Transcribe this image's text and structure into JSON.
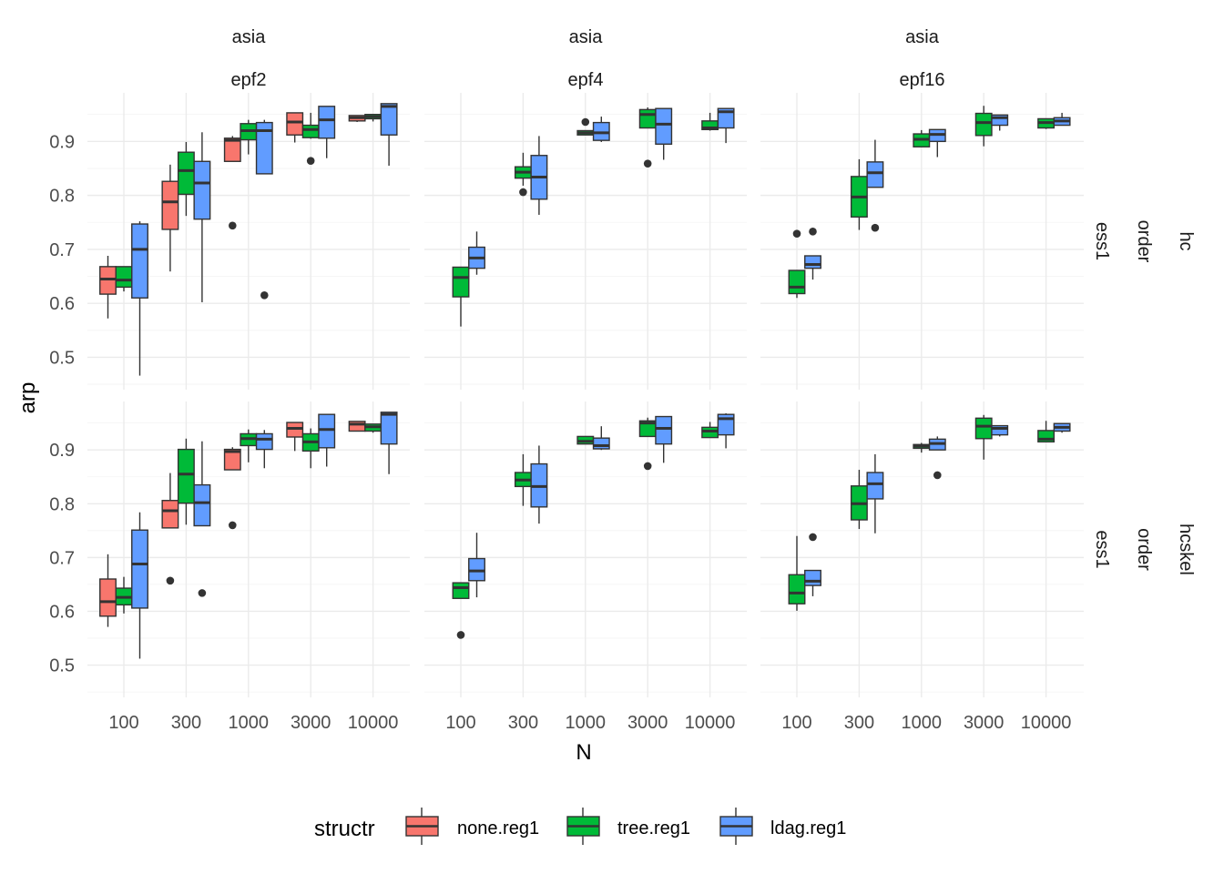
{
  "chart_data": {
    "type": "boxplot",
    "xlabel": "N",
    "ylabel": "arp",
    "x_categories": [
      "100",
      "300",
      "1000",
      "3000",
      "10000"
    ],
    "y_ticks": [
      0.5,
      0.6,
      0.7,
      0.8,
      0.9
    ],
    "ylim": [
      0.44,
      0.99
    ],
    "grid": true,
    "legend": {
      "title": "structr",
      "position": "bottom",
      "entries": [
        {
          "name": "none.reg1",
          "color": "#F8766D"
        },
        {
          "name": "tree.reg1",
          "color": "#00BA38"
        },
        {
          "name": "ldag.reg1",
          "color": "#619CFF"
        }
      ]
    },
    "column_strips": [
      {
        "line1": "asia",
        "line2": "epf2"
      },
      {
        "line1": "asia",
        "line2": "epf4"
      },
      {
        "line1": "asia",
        "line2": "epf16"
      }
    ],
    "row_strips": [
      {
        "line1": "hc",
        "line2": "order",
        "line3": "ess1"
      },
      {
        "line1": "hcskel",
        "line2": "order",
        "line3": "ess1"
      }
    ],
    "panels": [
      {
        "row": 0,
        "col": 0,
        "boxes": [
          {
            "series": "none.reg1",
            "x": "100",
            "wl": 0.572,
            "q1": 0.617,
            "med": 0.645,
            "q3": 0.668,
            "wh": 0.688,
            "out": []
          },
          {
            "series": "tree.reg1",
            "x": "100",
            "wl": 0.622,
            "q1": 0.63,
            "med": 0.643,
            "q3": 0.668,
            "wh": 0.668,
            "out": []
          },
          {
            "series": "ldag.reg1",
            "x": "100",
            "wl": 0.466,
            "q1": 0.61,
            "med": 0.7,
            "q3": 0.747,
            "wh": 0.752,
            "out": []
          },
          {
            "series": "none.reg1",
            "x": "300",
            "wl": 0.659,
            "q1": 0.737,
            "med": 0.788,
            "q3": 0.826,
            "wh": 0.857,
            "out": []
          },
          {
            "series": "tree.reg1",
            "x": "300",
            "wl": 0.762,
            "q1": 0.802,
            "med": 0.846,
            "q3": 0.88,
            "wh": 0.899,
            "out": []
          },
          {
            "series": "ldag.reg1",
            "x": "300",
            "wl": 0.602,
            "q1": 0.756,
            "med": 0.823,
            "q3": 0.863,
            "wh": 0.917,
            "out": []
          },
          {
            "series": "none.reg1",
            "x": "1000",
            "wl": 0.863,
            "q1": 0.863,
            "med": 0.902,
            "q3": 0.906,
            "wh": 0.91,
            "out": [
              0.744
            ]
          },
          {
            "series": "tree.reg1",
            "x": "1000",
            "wl": 0.876,
            "q1": 0.903,
            "med": 0.92,
            "q3": 0.933,
            "wh": 0.94,
            "out": []
          },
          {
            "series": "ldag.reg1",
            "x": "1000",
            "wl": 0.84,
            "q1": 0.84,
            "med": 0.92,
            "q3": 0.935,
            "wh": 0.94,
            "out": [
              0.615
            ]
          },
          {
            "series": "none.reg1",
            "x": "3000",
            "wl": 0.898,
            "q1": 0.912,
            "med": 0.936,
            "q3": 0.953,
            "wh": 0.953,
            "out": []
          },
          {
            "series": "tree.reg1",
            "x": "3000",
            "wl": 0.905,
            "q1": 0.907,
            "med": 0.922,
            "q3": 0.93,
            "wh": 0.953,
            "out": [
              0.864
            ]
          },
          {
            "series": "ldag.reg1",
            "x": "3000",
            "wl": 0.869,
            "q1": 0.906,
            "med": 0.94,
            "q3": 0.965,
            "wh": 0.965,
            "out": []
          },
          {
            "series": "none.reg1",
            "x": "10000",
            "wl": 0.936,
            "q1": 0.938,
            "med": 0.944,
            "q3": 0.948,
            "wh": 0.948,
            "out": []
          },
          {
            "series": "tree.reg1",
            "x": "10000",
            "wl": 0.937,
            "q1": 0.942,
            "med": 0.946,
            "q3": 0.95,
            "wh": 0.95,
            "out": []
          },
          {
            "series": "ldag.reg1",
            "x": "10000",
            "wl": 0.855,
            "q1": 0.912,
            "med": 0.965,
            "q3": 0.97,
            "wh": 0.97,
            "out": []
          }
        ]
      },
      {
        "row": 0,
        "col": 1,
        "boxes": [
          {
            "series": "tree.reg1",
            "x": "100",
            "wl": 0.557,
            "q1": 0.612,
            "med": 0.648,
            "q3": 0.667,
            "wh": 0.667,
            "out": []
          },
          {
            "series": "ldag.reg1",
            "x": "100",
            "wl": 0.653,
            "q1": 0.665,
            "med": 0.684,
            "q3": 0.704,
            "wh": 0.733,
            "out": []
          },
          {
            "series": "tree.reg1",
            "x": "300",
            "wl": 0.818,
            "q1": 0.832,
            "med": 0.843,
            "q3": 0.853,
            "wh": 0.879,
            "out": [
              0.806
            ]
          },
          {
            "series": "ldag.reg1",
            "x": "300",
            "wl": 0.764,
            "q1": 0.793,
            "med": 0.834,
            "q3": 0.874,
            "wh": 0.91,
            "out": []
          },
          {
            "series": "tree.reg1",
            "x": "1000",
            "wl": 0.912,
            "q1": 0.912,
            "med": 0.916,
            "q3": 0.92,
            "wh": 0.92,
            "out": [
              0.936
            ]
          },
          {
            "series": "ldag.reg1",
            "x": "1000",
            "wl": 0.899,
            "q1": 0.902,
            "med": 0.916,
            "q3": 0.935,
            "wh": 0.946,
            "out": []
          },
          {
            "series": "tree.reg1",
            "x": "3000",
            "wl": 0.925,
            "q1": 0.925,
            "med": 0.95,
            "q3": 0.959,
            "wh": 0.963,
            "out": [
              0.859
            ]
          },
          {
            "series": "ldag.reg1",
            "x": "3000",
            "wl": 0.866,
            "q1": 0.895,
            "med": 0.932,
            "q3": 0.961,
            "wh": 0.961,
            "out": []
          },
          {
            "series": "tree.reg1",
            "x": "10000",
            "wl": 0.92,
            "q1": 0.922,
            "med": 0.925,
            "q3": 0.938,
            "wh": 0.953,
            "out": []
          },
          {
            "series": "ldag.reg1",
            "x": "10000",
            "wl": 0.897,
            "q1": 0.925,
            "med": 0.955,
            "q3": 0.961,
            "wh": 0.961,
            "out": []
          }
        ]
      },
      {
        "row": 0,
        "col": 2,
        "boxes": [
          {
            "series": "tree.reg1",
            "x": "100",
            "wl": 0.61,
            "q1": 0.618,
            "med": 0.63,
            "q3": 0.661,
            "wh": 0.661,
            "out": [
              0.729
            ]
          },
          {
            "series": "ldag.reg1",
            "x": "100",
            "wl": 0.644,
            "q1": 0.665,
            "med": 0.672,
            "q3": 0.688,
            "wh": 0.688,
            "out": [
              0.733
            ]
          },
          {
            "series": "tree.reg1",
            "x": "300",
            "wl": 0.736,
            "q1": 0.76,
            "med": 0.797,
            "q3": 0.835,
            "wh": 0.867,
            "out": []
          },
          {
            "series": "ldag.reg1",
            "x": "300",
            "wl": 0.815,
            "q1": 0.815,
            "med": 0.842,
            "q3": 0.862,
            "wh": 0.903,
            "out": [
              0.74
            ]
          },
          {
            "series": "tree.reg1",
            "x": "1000",
            "wl": 0.89,
            "q1": 0.89,
            "med": 0.904,
            "q3": 0.914,
            "wh": 0.921,
            "out": []
          },
          {
            "series": "ldag.reg1",
            "x": "1000",
            "wl": 0.871,
            "q1": 0.9,
            "med": 0.913,
            "q3": 0.922,
            "wh": 0.922,
            "out": []
          },
          {
            "series": "tree.reg1",
            "x": "3000",
            "wl": 0.891,
            "q1": 0.911,
            "med": 0.935,
            "q3": 0.952,
            "wh": 0.966,
            "out": []
          },
          {
            "series": "ldag.reg1",
            "x": "3000",
            "wl": 0.92,
            "q1": 0.93,
            "med": 0.944,
            "q3": 0.949,
            "wh": 0.949,
            "out": []
          },
          {
            "series": "tree.reg1",
            "x": "10000",
            "wl": 0.923,
            "q1": 0.925,
            "med": 0.935,
            "q3": 0.942,
            "wh": 0.942,
            "out": []
          },
          {
            "series": "ldag.reg1",
            "x": "10000",
            "wl": 0.93,
            "q1": 0.93,
            "med": 0.938,
            "q3": 0.944,
            "wh": 0.953,
            "out": []
          }
        ]
      },
      {
        "row": 1,
        "col": 0,
        "boxes": [
          {
            "series": "none.reg1",
            "x": "100",
            "wl": 0.571,
            "q1": 0.591,
            "med": 0.618,
            "q3": 0.66,
            "wh": 0.706,
            "out": []
          },
          {
            "series": "tree.reg1",
            "x": "100",
            "wl": 0.596,
            "q1": 0.612,
            "med": 0.626,
            "q3": 0.643,
            "wh": 0.664,
            "out": []
          },
          {
            "series": "ldag.reg1",
            "x": "100",
            "wl": 0.512,
            "q1": 0.606,
            "med": 0.688,
            "q3": 0.751,
            "wh": 0.784,
            "out": []
          },
          {
            "series": "none.reg1",
            "x": "300",
            "wl": 0.755,
            "q1": 0.755,
            "med": 0.787,
            "q3": 0.806,
            "wh": 0.857,
            "out": [
              0.657
            ]
          },
          {
            "series": "tree.reg1",
            "x": "300",
            "wl": 0.761,
            "q1": 0.801,
            "med": 0.855,
            "q3": 0.901,
            "wh": 0.921,
            "out": []
          },
          {
            "series": "ldag.reg1",
            "x": "300",
            "wl": 0.759,
            "q1": 0.759,
            "med": 0.802,
            "q3": 0.835,
            "wh": 0.916,
            "out": [
              0.634
            ]
          },
          {
            "series": "none.reg1",
            "x": "1000",
            "wl": 0.863,
            "q1": 0.863,
            "med": 0.897,
            "q3": 0.901,
            "wh": 0.905,
            "out": [
              0.76
            ]
          },
          {
            "series": "tree.reg1",
            "x": "1000",
            "wl": 0.877,
            "q1": 0.908,
            "med": 0.921,
            "q3": 0.93,
            "wh": 0.938,
            "out": []
          },
          {
            "series": "ldag.reg1",
            "x": "1000",
            "wl": 0.866,
            "q1": 0.901,
            "med": 0.92,
            "q3": 0.93,
            "wh": 0.937,
            "out": []
          },
          {
            "series": "none.reg1",
            "x": "3000",
            "wl": 0.898,
            "q1": 0.924,
            "med": 0.94,
            "q3": 0.951,
            "wh": 0.951,
            "out": []
          },
          {
            "series": "tree.reg1",
            "x": "3000",
            "wl": 0.866,
            "q1": 0.898,
            "med": 0.915,
            "q3": 0.93,
            "wh": 0.94,
            "out": []
          },
          {
            "series": "ldag.reg1",
            "x": "3000",
            "wl": 0.869,
            "q1": 0.904,
            "med": 0.938,
            "q3": 0.966,
            "wh": 0.966,
            "out": []
          },
          {
            "series": "none.reg1",
            "x": "10000",
            "wl": 0.935,
            "q1": 0.935,
            "med": 0.948,
            "q3": 0.953,
            "wh": 0.953,
            "out": []
          },
          {
            "series": "tree.reg1",
            "x": "10000",
            "wl": 0.932,
            "q1": 0.935,
            "med": 0.943,
            "q3": 0.948,
            "wh": 0.948,
            "out": []
          },
          {
            "series": "ldag.reg1",
            "x": "10000",
            "wl": 0.855,
            "q1": 0.911,
            "med": 0.966,
            "q3": 0.97,
            "wh": 0.97,
            "out": []
          }
        ]
      },
      {
        "row": 1,
        "col": 1,
        "boxes": [
          {
            "series": "tree.reg1",
            "x": "100",
            "wl": 0.624,
            "q1": 0.624,
            "med": 0.644,
            "q3": 0.653,
            "wh": 0.653,
            "out": [
              0.556
            ]
          },
          {
            "series": "ldag.reg1",
            "x": "100",
            "wl": 0.626,
            "q1": 0.657,
            "med": 0.675,
            "q3": 0.698,
            "wh": 0.746,
            "out": []
          },
          {
            "series": "tree.reg1",
            "x": "300",
            "wl": 0.796,
            "q1": 0.832,
            "med": 0.844,
            "q3": 0.858,
            "wh": 0.892,
            "out": []
          },
          {
            "series": "ldag.reg1",
            "x": "300",
            "wl": 0.763,
            "q1": 0.794,
            "med": 0.832,
            "q3": 0.874,
            "wh": 0.908,
            "out": []
          },
          {
            "series": "tree.reg1",
            "x": "1000",
            "wl": 0.911,
            "q1": 0.911,
            "med": 0.916,
            "q3": 0.925,
            "wh": 0.925,
            "out": []
          },
          {
            "series": "ldag.reg1",
            "x": "1000",
            "wl": 0.9,
            "q1": 0.902,
            "med": 0.908,
            "q3": 0.922,
            "wh": 0.944,
            "out": []
          },
          {
            "series": "tree.reg1",
            "x": "3000",
            "wl": 0.925,
            "q1": 0.925,
            "med": 0.95,
            "q3": 0.954,
            "wh": 0.96,
            "out": [
              0.87
            ]
          },
          {
            "series": "ldag.reg1",
            "x": "3000",
            "wl": 0.876,
            "q1": 0.911,
            "med": 0.94,
            "q3": 0.962,
            "wh": 0.962,
            "out": []
          },
          {
            "series": "tree.reg1",
            "x": "10000",
            "wl": 0.923,
            "q1": 0.923,
            "med": 0.935,
            "q3": 0.942,
            "wh": 0.952,
            "out": []
          },
          {
            "series": "ldag.reg1",
            "x": "10000",
            "wl": 0.903,
            "q1": 0.928,
            "med": 0.958,
            "q3": 0.966,
            "wh": 0.968,
            "out": []
          }
        ]
      },
      {
        "row": 1,
        "col": 2,
        "boxes": [
          {
            "series": "tree.reg1",
            "x": "100",
            "wl": 0.601,
            "q1": 0.614,
            "med": 0.634,
            "q3": 0.668,
            "wh": 0.74,
            "out": []
          },
          {
            "series": "ldag.reg1",
            "x": "100",
            "wl": 0.628,
            "q1": 0.648,
            "med": 0.656,
            "q3": 0.676,
            "wh": 0.676,
            "out": [
              0.738
            ]
          },
          {
            "series": "tree.reg1",
            "x": "300",
            "wl": 0.753,
            "q1": 0.77,
            "med": 0.8,
            "q3": 0.833,
            "wh": 0.863,
            "out": []
          },
          {
            "series": "ldag.reg1",
            "x": "300",
            "wl": 0.745,
            "q1": 0.809,
            "med": 0.837,
            "q3": 0.858,
            "wh": 0.892,
            "out": []
          },
          {
            "series": "tree.reg1",
            "x": "1000",
            "wl": 0.895,
            "q1": 0.903,
            "med": 0.907,
            "q3": 0.91,
            "wh": 0.913,
            "out": []
          },
          {
            "series": "ldag.reg1",
            "x": "1000",
            "wl": 0.9,
            "q1": 0.9,
            "med": 0.912,
            "q3": 0.92,
            "wh": 0.925,
            "out": [
              0.853
            ]
          },
          {
            "series": "tree.reg1",
            "x": "3000",
            "wl": 0.882,
            "q1": 0.921,
            "med": 0.944,
            "q3": 0.959,
            "wh": 0.965,
            "out": []
          },
          {
            "series": "ldag.reg1",
            "x": "3000",
            "wl": 0.925,
            "q1": 0.928,
            "med": 0.94,
            "q3": 0.945,
            "wh": 0.945,
            "out": []
          },
          {
            "series": "tree.reg1",
            "x": "10000",
            "wl": 0.915,
            "q1": 0.915,
            "med": 0.92,
            "q3": 0.936,
            "wh": 0.954,
            "out": []
          },
          {
            "series": "ldag.reg1",
            "x": "10000",
            "wl": 0.932,
            "q1": 0.935,
            "med": 0.942,
            "q3": 0.949,
            "wh": 0.949,
            "out": []
          }
        ]
      }
    ]
  }
}
